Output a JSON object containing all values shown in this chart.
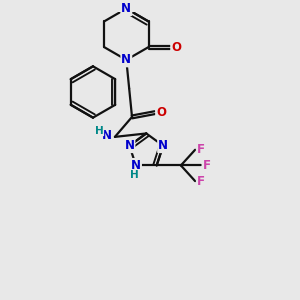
{
  "bg_color": "#e8e8e8",
  "bond_color": "#111111",
  "N_color": "#0000cc",
  "O_color": "#cc0000",
  "F_color": "#cc44aa",
  "H_color": "#008888",
  "bond_width": 1.6,
  "font_size": 8.5,
  "fig_size": [
    3.0,
    3.0
  ],
  "xlim": [
    0,
    10
  ],
  "ylim": [
    0,
    10
  ]
}
